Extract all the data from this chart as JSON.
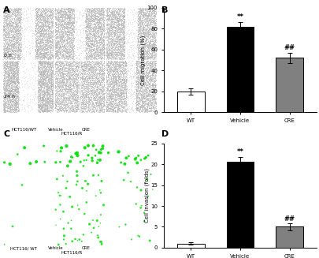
{
  "panel_B": {
    "categories": [
      "WT",
      "Vehicle",
      "CRE"
    ],
    "values": [
      20,
      82,
      52
    ],
    "errors": [
      3,
      4,
      5
    ],
    "colors": [
      "white",
      "black",
      "#808080"
    ],
    "ylabel": "Cell migration (%)",
    "ylim": [
      0,
      100
    ],
    "yticks": [
      0,
      20,
      40,
      60,
      80,
      100
    ],
    "xlabel_group": "HCT116/R",
    "sig_vehicle": "**",
    "sig_cre": "##",
    "edgecolor": "black",
    "bar_width": 0.55
  },
  "panel_D": {
    "categories": [
      "WT",
      "Vehicle",
      "CRE"
    ],
    "values": [
      1,
      20.5,
      5
    ],
    "errors": [
      0.3,
      1.2,
      0.8
    ],
    "colors": [
      "white",
      "black",
      "#808080"
    ],
    "ylabel": "Cell invasion (folds)",
    "ylim": [
      0,
      25
    ],
    "yticks": [
      0,
      5,
      10,
      15,
      20,
      25
    ],
    "xlabel_group": "HCT116/R",
    "sig_vehicle": "**",
    "sig_cre": "##",
    "edgecolor": "black",
    "bar_width": 0.55
  },
  "bg_color": "#ffffff",
  "dark_bg": "#0a0a0a",
  "cell_color_A": "#b0b0b0",
  "cell_color_C": "#00dd00",
  "label_A": "A",
  "label_B": "B",
  "label_C": "C",
  "label_D": "D",
  "col_label_WT": "HCT116/WT",
  "col_label_Vehicle": "Vehicle",
  "col_label_CRE": "CRE",
  "col_label_R": "HCT116/R",
  "col_label_WT_C": "HCT116/ WT"
}
